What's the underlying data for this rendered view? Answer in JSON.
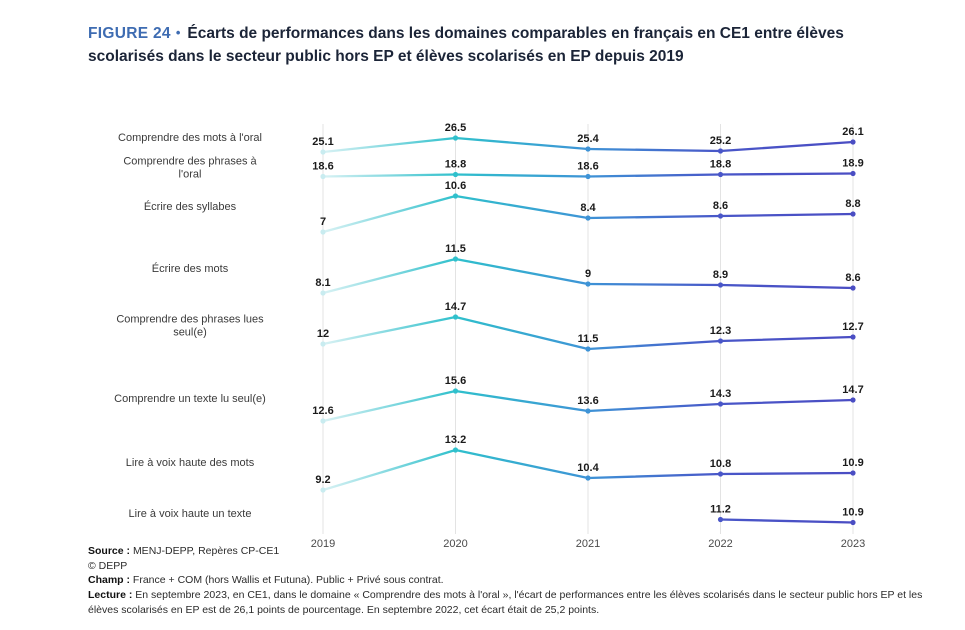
{
  "header": {
    "figure_label": "FIGURE 24",
    "separator": "•",
    "title": "Écarts de performances dans les domaines comparables en français en CE1 entre élèves scolarisés dans le secteur public hors EP et élèves scolarisés en EP depuis 2019"
  },
  "chart_data": {
    "type": "line",
    "variant": "small-multiples-stacked-rows",
    "x": [
      "2019",
      "2020",
      "2021",
      "2022",
      "2023"
    ],
    "rows": [
      {
        "label": "Comprendre des mots à l'oral",
        "label_lines": [
          "Comprendre des mots à l'oral"
        ],
        "values": [
          25.1,
          26.5,
          25.4,
          25.2,
          26.1
        ]
      },
      {
        "label": "Comprendre des phrases à l'oral",
        "label_lines": [
          "Comprendre des phrases à",
          "l'oral"
        ],
        "values": [
          18.6,
          18.8,
          18.6,
          18.8,
          18.9
        ]
      },
      {
        "label": "Écrire des syllabes",
        "label_lines": [
          "Écrire des syllabes"
        ],
        "values": [
          7,
          10.6,
          8.4,
          8.6,
          8.8
        ]
      },
      {
        "label": "Écrire des mots",
        "label_lines": [
          "Écrire des mots"
        ],
        "values": [
          8.1,
          11.5,
          9,
          8.9,
          8.6
        ]
      },
      {
        "label": "Comprendre des phrases lues seul(e)",
        "label_lines": [
          "Comprendre des phrases lues",
          "seul(e)"
        ],
        "values": [
          12,
          14.7,
          11.5,
          12.3,
          12.7
        ]
      },
      {
        "label": "Comprendre un texte lu seul(e)",
        "label_lines": [
          "Comprendre un texte lu seul(e)"
        ],
        "values": [
          12.6,
          15.6,
          13.6,
          14.3,
          14.7
        ]
      },
      {
        "label": "Lire à voix haute des mots",
        "label_lines": [
          "Lire à voix haute des mots"
        ],
        "values": [
          9.2,
          13.2,
          10.4,
          10.8,
          10.9
        ]
      },
      {
        "label": "Lire à voix haute un texte",
        "label_lines": [
          "Lire à voix haute un texte"
        ],
        "values": [
          null,
          null,
          null,
          11.2,
          10.9
        ]
      }
    ],
    "grid": "vertical-year-lines",
    "legend": "none",
    "colors": {
      "gradient_stops": [
        "#d9f2f4",
        "#2fc0cc",
        "#3e93d6",
        "#4956c8",
        "#4a4dc3"
      ],
      "point_colors": [
        "#c9ecf0",
        "#2fc0cc",
        "#3e93d6",
        "#4956c8",
        "#4a4dc3"
      ],
      "grid_line": "#e3e3e3",
      "value_label": "#1a1a1a",
      "year_label": "#4a4a4a",
      "category_label": "#3a3a3a"
    }
  },
  "footer": {
    "source_label": "Source :",
    "source_text": "MENJ-DEPP, Repères CP-CE1",
    "copyright": "© DEPP",
    "champ_label": "Champ :",
    "champ_text": "France + COM (hors Wallis et Futuna). Public + Privé sous contrat.",
    "lecture_label": "Lecture :",
    "lecture_text": "En septembre 2023, en CE1, dans le domaine « Comprendre des mots à l'oral », l'écart de performances entre les élèves scolarisés dans le secteur public hors EP et les élèves scolarisés en EP est de 26,1 points de pourcentage. En septembre 2022, cet écart était de 25,2 points."
  },
  "theme": {
    "figure_label_color": "#3e6cb2",
    "title_color": "#1b2437"
  }
}
